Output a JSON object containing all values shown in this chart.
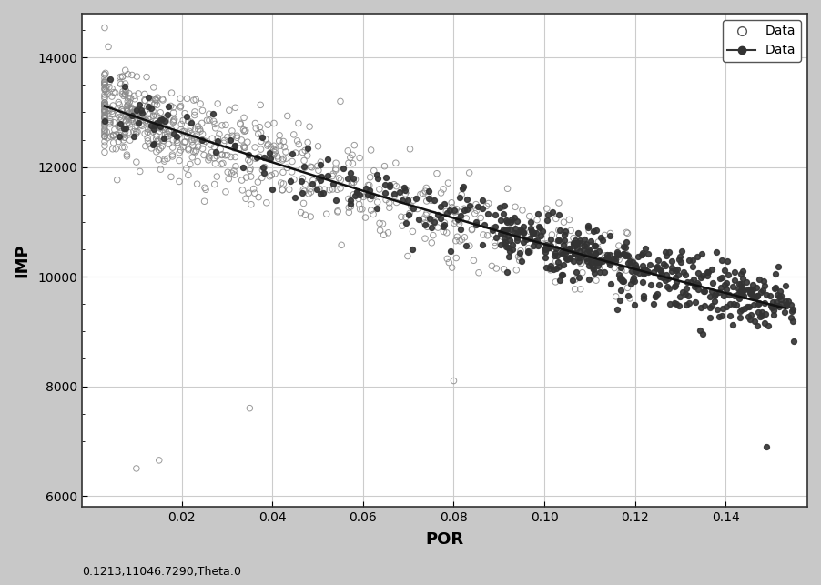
{
  "xlabel": "POR",
  "ylabel": "IMP",
  "xlim": [
    -0.002,
    0.158
  ],
  "ylim": [
    5800,
    14800
  ],
  "xticks": [
    0.02,
    0.04,
    0.06,
    0.08,
    0.1,
    0.12,
    0.14
  ],
  "yticks": [
    6000,
    8000,
    10000,
    12000,
    14000
  ],
  "grid_color": "#cccccc",
  "fig_facecolor": "#c8c8c8",
  "ax_facecolor": "#ffffff",
  "annotation": "0.1213,11046.7290,Theta:0",
  "legend_labels": [
    "Data",
    "Data"
  ],
  "scatter1_color": "#888888",
  "scatter2_color": "#333333",
  "line_color": "#111111",
  "curve_a": 13100,
  "curve_b": -3.0,
  "curve_x_start": 0.003,
  "curve_x_end": 0.153
}
